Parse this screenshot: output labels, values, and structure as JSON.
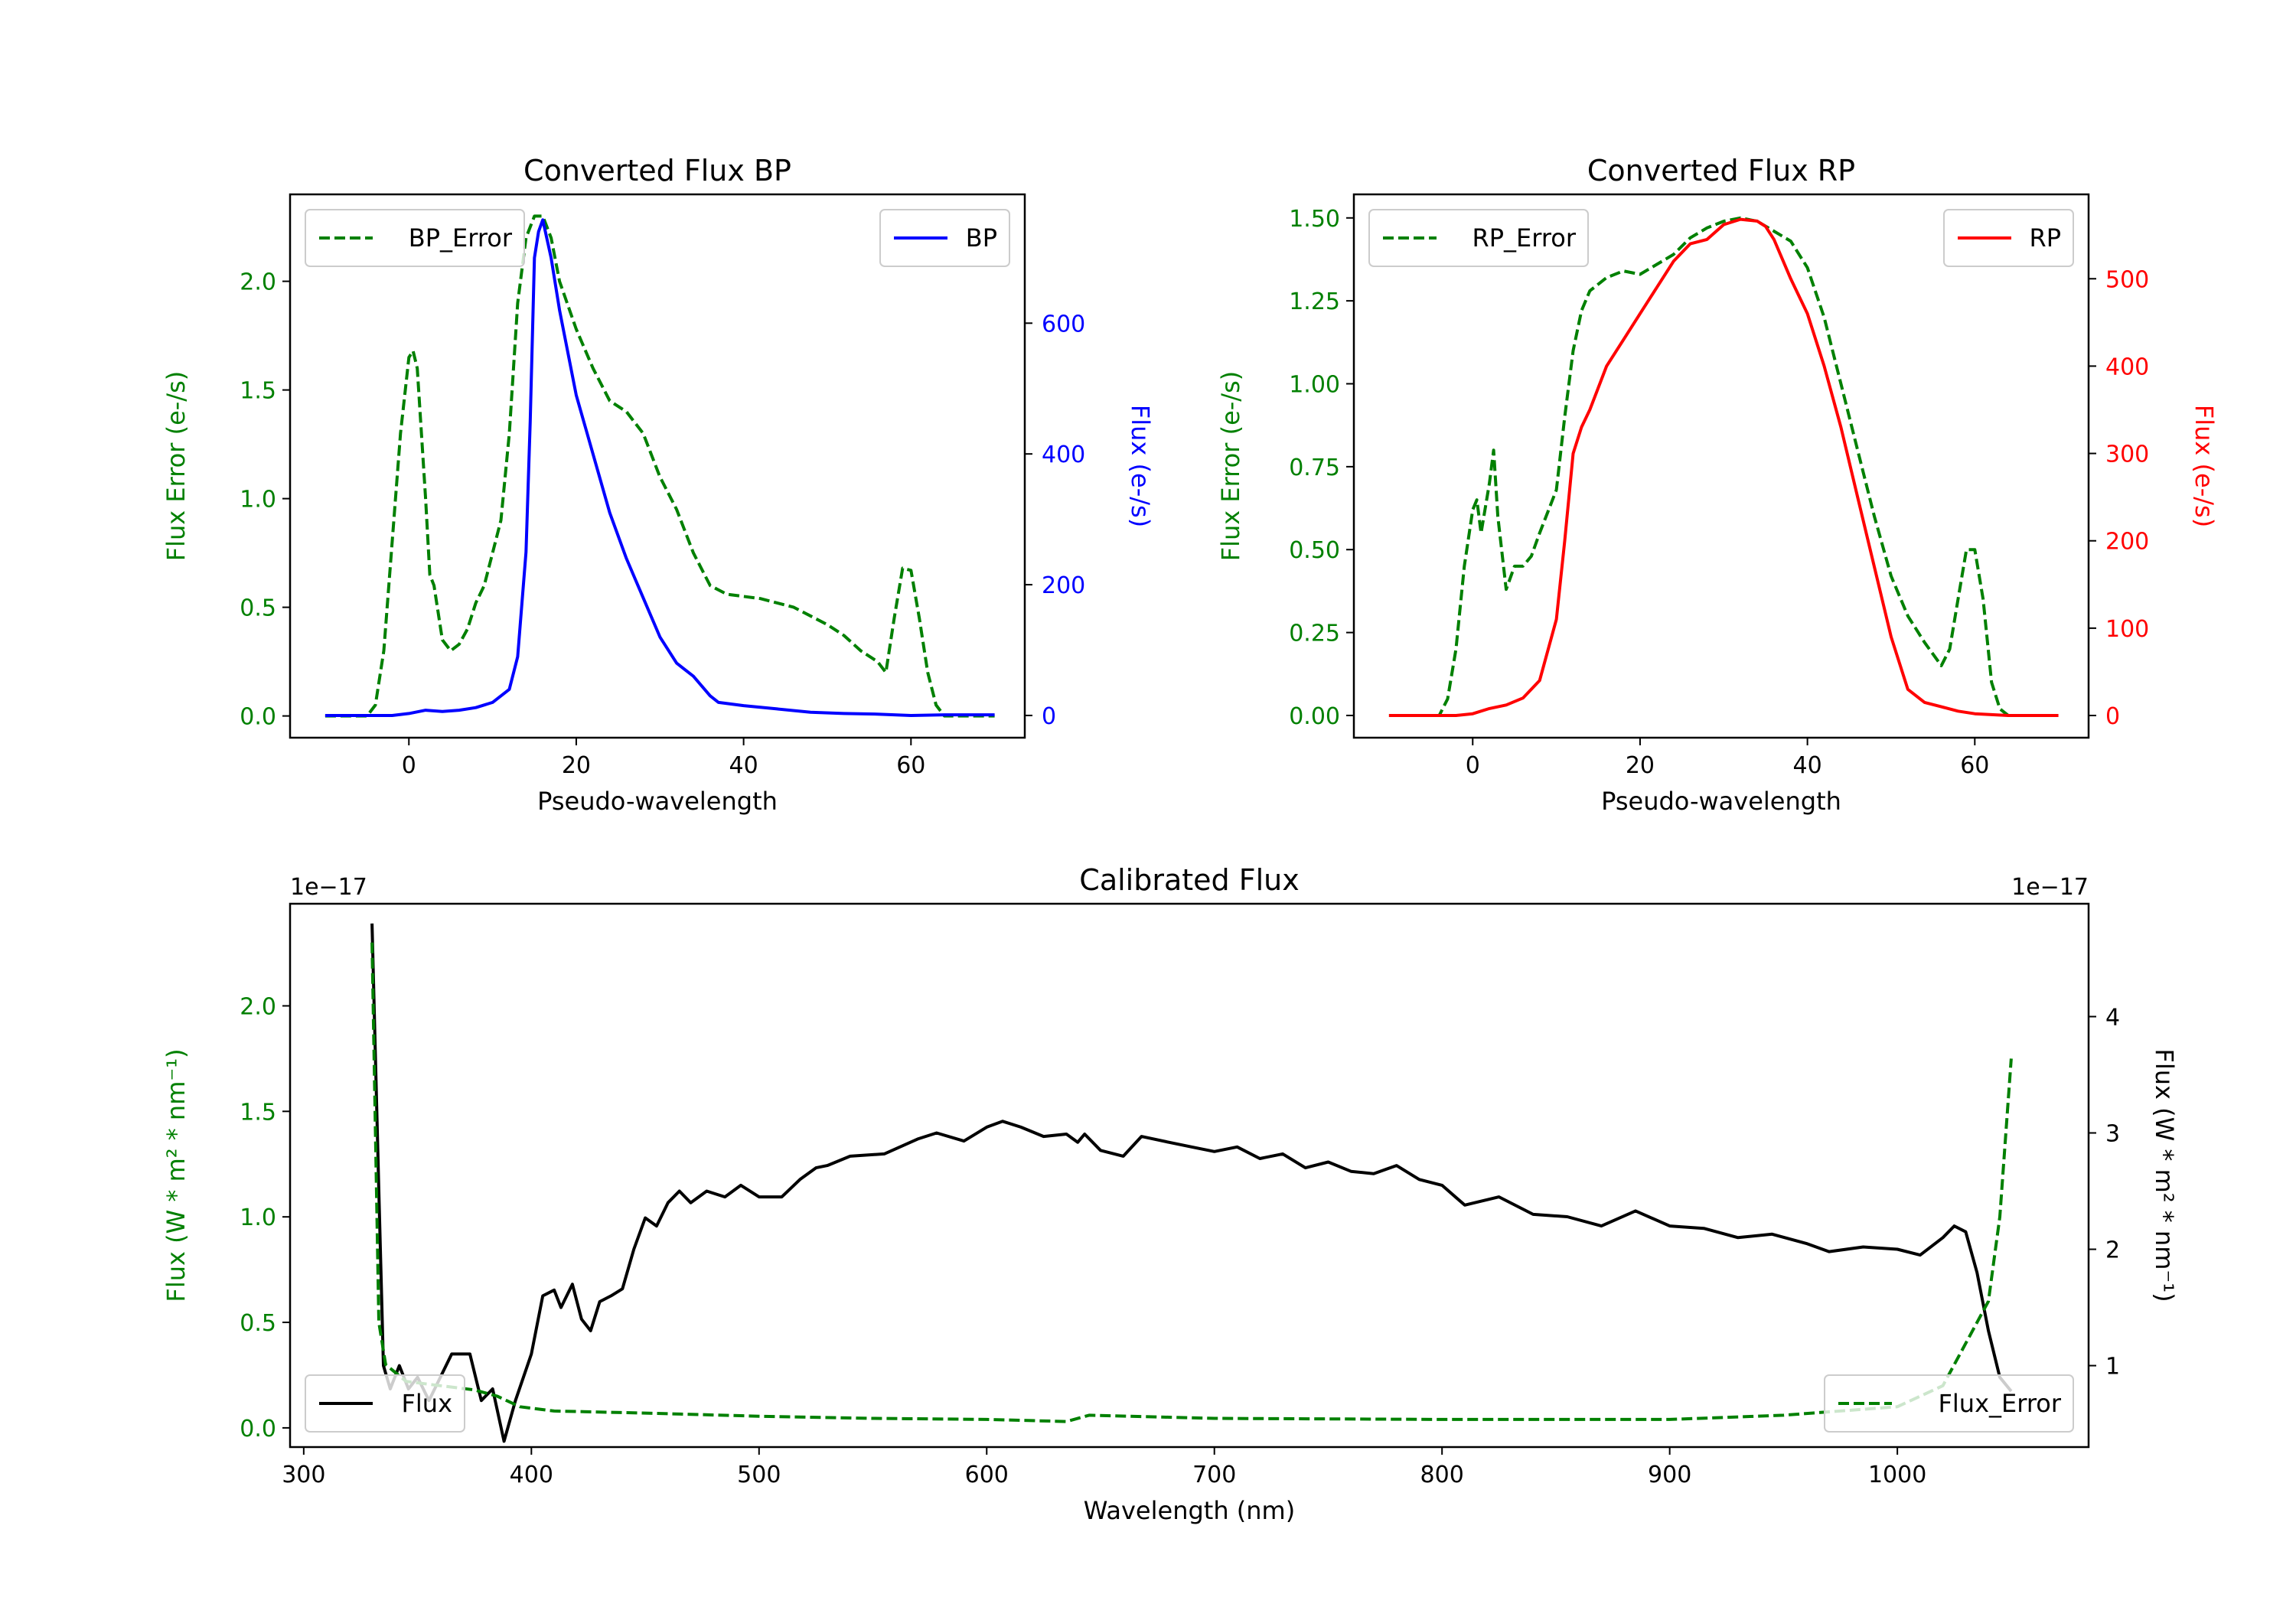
{
  "chart_data": [
    {
      "type": "line",
      "title": "Converted Flux BP",
      "xlabel": "Pseudo-wavelength",
      "xlim": [
        -14.2,
        73.6
      ],
      "xticks": [
        0,
        20,
        40,
        60
      ],
      "left_axis": {
        "label": "Flux Error (e-/s)",
        "color": "#008000",
        "ylim": [
          -0.1,
          2.4
        ],
        "ticks": [
          0.0,
          0.5,
          1.0,
          1.5,
          2.0
        ],
        "decimals": 1
      },
      "right_axis": {
        "label": "Flux (e-/s)",
        "color": "#0000ff",
        "ylim": [
          -34,
          797
        ],
        "ticks": [
          0,
          200,
          400,
          600
        ],
        "decimals": 0
      },
      "series": [
        {
          "name": "BP_Error",
          "axis": "left",
          "color": "#008000",
          "style": "dashed",
          "legend": "upper left",
          "x": [
            -10,
            -5,
            -4,
            -3,
            -2,
            -1,
            0,
            0.5,
            1,
            2,
            2.5,
            3,
            4,
            5,
            6,
            7,
            8,
            9,
            10,
            11,
            12,
            13,
            14,
            15,
            16,
            17,
            18,
            20,
            22,
            24,
            26,
            28,
            30,
            32,
            34,
            36,
            38,
            42,
            46,
            50,
            52,
            54,
            56,
            57,
            58,
            59,
            60,
            61,
            62,
            63,
            64,
            70
          ],
          "y": [
            0,
            0,
            0.05,
            0.3,
            0.8,
            1.3,
            1.65,
            1.68,
            1.6,
            1.0,
            0.65,
            0.6,
            0.35,
            0.3,
            0.33,
            0.4,
            0.52,
            0.6,
            0.75,
            0.9,
            1.3,
            1.9,
            2.2,
            2.3,
            2.3,
            2.2,
            2.0,
            1.78,
            1.6,
            1.45,
            1.4,
            1.3,
            1.1,
            0.95,
            0.75,
            0.6,
            0.56,
            0.54,
            0.5,
            0.42,
            0.37,
            0.3,
            0.25,
            0.2,
            0.45,
            0.68,
            0.67,
            0.45,
            0.2,
            0.05,
            0,
            0
          ]
        },
        {
          "name": "BP",
          "axis": "right",
          "color": "#0000ff",
          "style": "solid",
          "legend": "upper right",
          "x": [
            -10,
            -2,
            0,
            2,
            4,
            6,
            8,
            10,
            12,
            13,
            14,
            14.5,
            15,
            15.5,
            16,
            17,
            18,
            20,
            22,
            24,
            26,
            28,
            30,
            32,
            34,
            36,
            37,
            40,
            44,
            48,
            52,
            56,
            60,
            64,
            70
          ],
          "y": [
            0,
            0,
            3,
            8,
            6,
            8,
            12,
            20,
            40,
            90,
            250,
            450,
            700,
            740,
            758,
            700,
            620,
            490,
            400,
            310,
            240,
            180,
            120,
            80,
            60,
            30,
            20,
            15,
            10,
            5,
            3,
            2,
            0,
            1,
            1
          ]
        }
      ]
    },
    {
      "type": "line",
      "title": "Converted Flux RP",
      "xlabel": "Pseudo-wavelength",
      "xlim": [
        -14.2,
        73.6
      ],
      "xticks": [
        0,
        20,
        40,
        60
      ],
      "left_axis": {
        "label": "Flux Error (e-/s)",
        "color": "#008000",
        "ylim": [
          -0.067,
          1.571
        ],
        "ticks": [
          0.0,
          0.25,
          0.5,
          0.75,
          1.0,
          1.25,
          1.5
        ],
        "decimals": 2
      },
      "right_axis": {
        "label": "Flux (e-/s)",
        "color": "#ff0000",
        "ylim": [
          -25.4,
          596.6
        ],
        "ticks": [
          0,
          100,
          200,
          300,
          400,
          500
        ],
        "decimals": 0
      },
      "series": [
        {
          "name": "RP_Error",
          "axis": "left",
          "color": "#008000",
          "style": "dashed",
          "legend": "upper left",
          "x": [
            -10,
            -4,
            -3,
            -2,
            -1,
            0,
            0.5,
            1,
            2,
            2.5,
            3,
            4,
            5,
            6,
            7,
            8,
            10,
            11,
            12,
            13,
            14,
            16,
            18,
            20,
            22,
            24,
            26,
            28,
            30,
            32,
            34,
            36,
            38,
            40,
            42,
            44,
            46,
            48,
            50,
            52,
            54,
            56,
            57,
            58,
            59,
            60,
            61,
            62,
            63,
            64,
            70
          ],
          "y": [
            0,
            0,
            0.05,
            0.2,
            0.45,
            0.62,
            0.65,
            0.55,
            0.7,
            0.8,
            0.6,
            0.38,
            0.45,
            0.45,
            0.48,
            0.55,
            0.68,
            0.9,
            1.1,
            1.22,
            1.28,
            1.32,
            1.34,
            1.33,
            1.36,
            1.39,
            1.44,
            1.47,
            1.49,
            1.5,
            1.49,
            1.46,
            1.43,
            1.35,
            1.2,
            1.0,
            0.8,
            0.6,
            0.42,
            0.3,
            0.22,
            0.15,
            0.2,
            0.35,
            0.5,
            0.5,
            0.35,
            0.1,
            0.02,
            0,
            0
          ]
        },
        {
          "name": "RP",
          "axis": "right",
          "color": "#ff0000",
          "style": "solid",
          "legend": "upper right",
          "x": [
            -10,
            -2,
            0,
            2,
            4,
            6,
            8,
            10,
            11,
            12,
            13,
            14,
            16,
            18,
            20,
            22,
            24,
            26,
            28,
            30,
            32,
            34,
            35,
            36,
            38,
            40,
            42,
            44,
            46,
            48,
            50,
            52,
            54,
            56,
            58,
            60,
            64,
            70
          ],
          "y": [
            0,
            0,
            2,
            8,
            12,
            20,
            40,
            110,
            200,
            300,
            330,
            350,
            400,
            430,
            460,
            490,
            520,
            540,
            545,
            562,
            568,
            566,
            560,
            545,
            500,
            460,
            400,
            330,
            250,
            170,
            90,
            30,
            15,
            10,
            5,
            2,
            0,
            0
          ]
        }
      ]
    },
    {
      "type": "line",
      "title": "Calibrated Flux",
      "xlabel": "Wavelength (nm)",
      "xlim": [
        294,
        1084
      ],
      "xticks": [
        300,
        400,
        500,
        600,
        700,
        800,
        900,
        1000
      ],
      "left_axis": {
        "label": "Flux (W * m² * nm⁻¹)",
        "color": "#008000",
        "ylim": [
          -0.091,
          2.484
        ],
        "ticks": [
          0.0,
          0.5,
          1.0,
          1.5,
          2.0
        ],
        "decimals": 1,
        "offset_text": "1e−17"
      },
      "right_axis": {
        "label": "Flux (W * m² * nm⁻¹)",
        "color": "#000000",
        "ylim": [
          0.3,
          4.97
        ],
        "ticks": [
          1,
          2,
          3,
          4
        ],
        "decimals": 0,
        "offset_text": "1e−17"
      },
      "series": [
        {
          "name": "Flux",
          "axis": "right",
          "color": "#000000",
          "style": "solid",
          "legend": "lower left",
          "x": [
            330,
            333,
            335,
            338,
            342,
            346,
            350,
            355,
            365,
            370,
            373,
            378,
            383,
            388,
            393,
            400,
            405,
            410,
            413,
            418,
            422,
            426,
            430,
            435,
            440,
            445,
            450,
            455,
            460,
            465,
            470,
            477,
            485,
            492,
            500,
            510,
            518,
            525,
            530,
            540,
            555,
            570,
            578,
            590,
            600,
            607,
            615,
            625,
            635,
            640,
            643,
            650,
            660,
            668,
            680,
            690,
            700,
            710,
            720,
            730,
            740,
            750,
            760,
            770,
            780,
            790,
            800,
            810,
            825,
            840,
            855,
            870,
            885,
            900,
            915,
            930,
            945,
            960,
            970,
            985,
            1000,
            1010,
            1020,
            1025,
            1030,
            1035,
            1040,
            1045,
            1050
          ],
          "y": [
            4.8,
            2.5,
            1.0,
            0.8,
            1.0,
            0.8,
            0.9,
            0.7,
            1.1,
            1.1,
            1.1,
            0.7,
            0.8,
            0.35,
            0.7,
            1.1,
            1.6,
            1.65,
            1.5,
            1.7,
            1.4,
            1.3,
            1.55,
            1.6,
            1.66,
            2.0,
            2.27,
            2.2,
            2.4,
            2.5,
            2.4,
            2.5,
            2.45,
            2.55,
            2.45,
            2.45,
            2.6,
            2.7,
            2.72,
            2.8,
            2.82,
            2.95,
            3.0,
            2.93,
            3.05,
            3.1,
            3.05,
            2.97,
            2.99,
            2.92,
            2.99,
            2.85,
            2.8,
            2.97,
            2.92,
            2.88,
            2.84,
            2.88,
            2.78,
            2.82,
            2.7,
            2.75,
            2.67,
            2.65,
            2.72,
            2.6,
            2.55,
            2.38,
            2.45,
            2.3,
            2.28,
            2.2,
            2.33,
            2.2,
            2.18,
            2.1,
            2.13,
            2.05,
            1.98,
            2.02,
            2.0,
            1.95,
            2.1,
            2.2,
            2.15,
            1.8,
            1.3,
            0.9,
            0.78
          ]
        },
        {
          "name": "Flux_Error",
          "axis": "left",
          "color": "#008000",
          "style": "dashed",
          "legend": "lower right",
          "x": [
            330,
            333,
            336,
            345,
            360,
            375,
            385,
            395,
            410,
            450,
            500,
            550,
            600,
            635,
            645,
            700,
            800,
            900,
            950,
            1000,
            1020,
            1030,
            1040,
            1045,
            1050
          ],
          "y": [
            2.3,
            0.5,
            0.3,
            0.22,
            0.2,
            0.18,
            0.15,
            0.1,
            0.08,
            0.07,
            0.055,
            0.045,
            0.04,
            0.03,
            0.06,
            0.045,
            0.04,
            0.04,
            0.06,
            0.1,
            0.2,
            0.4,
            0.6,
            1.0,
            1.75
          ]
        }
      ]
    }
  ]
}
